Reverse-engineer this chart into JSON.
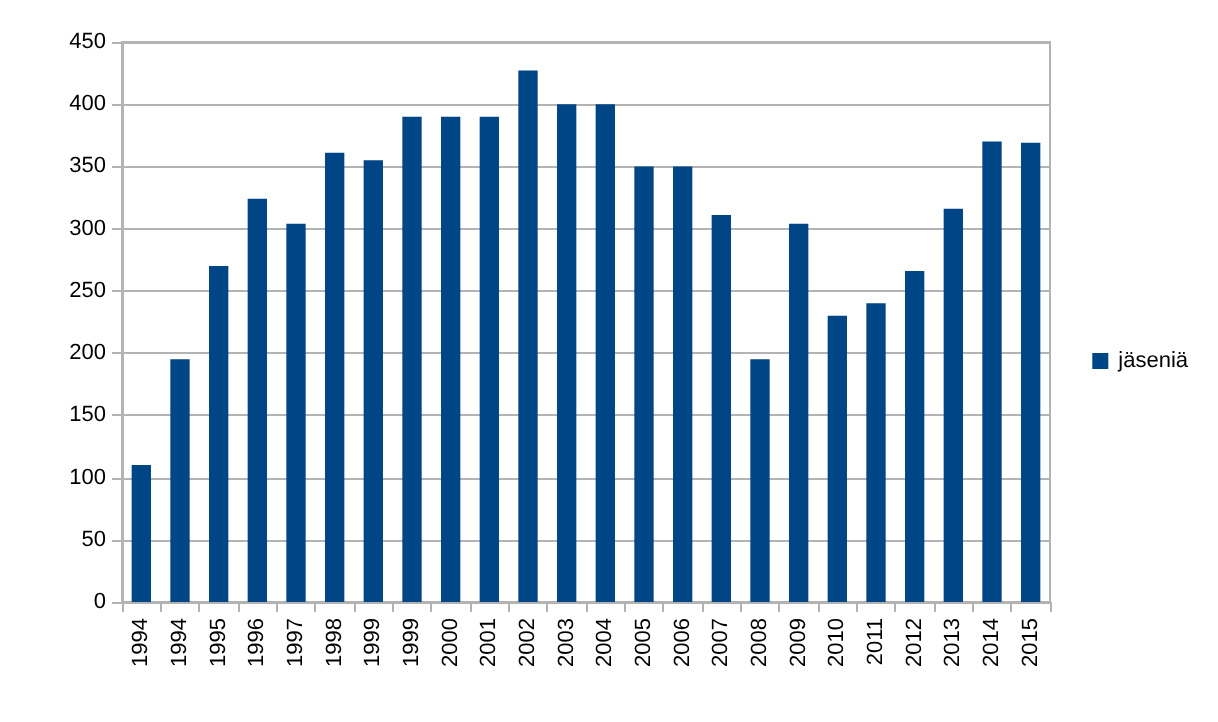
{
  "chart_data": {
    "type": "bar",
    "categories": [
      "1994",
      "1994",
      "1995",
      "1996",
      "1997",
      "1998",
      "1999",
      "1999",
      "2000",
      "2001",
      "2002",
      "2003",
      "2004",
      "2005",
      "2006",
      "2007",
      "2008",
      "2009",
      "2010",
      "2011",
      "2012",
      "2013",
      "2014",
      "2015"
    ],
    "series": [
      {
        "name": "jäseniä",
        "color": "#004586",
        "values": [
          110,
          195,
          270,
          324,
          304,
          361,
          355,
          390,
          390,
          390,
          427,
          400,
          400,
          350,
          350,
          311,
          195,
          304,
          230,
          240,
          266,
          316,
          370,
          369
        ]
      }
    ],
    "ylim": [
      0,
      450
    ],
    "yticks": [
      0,
      50,
      100,
      150,
      200,
      250,
      300,
      350,
      400,
      450
    ],
    "grid": "y",
    "legend": "right"
  }
}
